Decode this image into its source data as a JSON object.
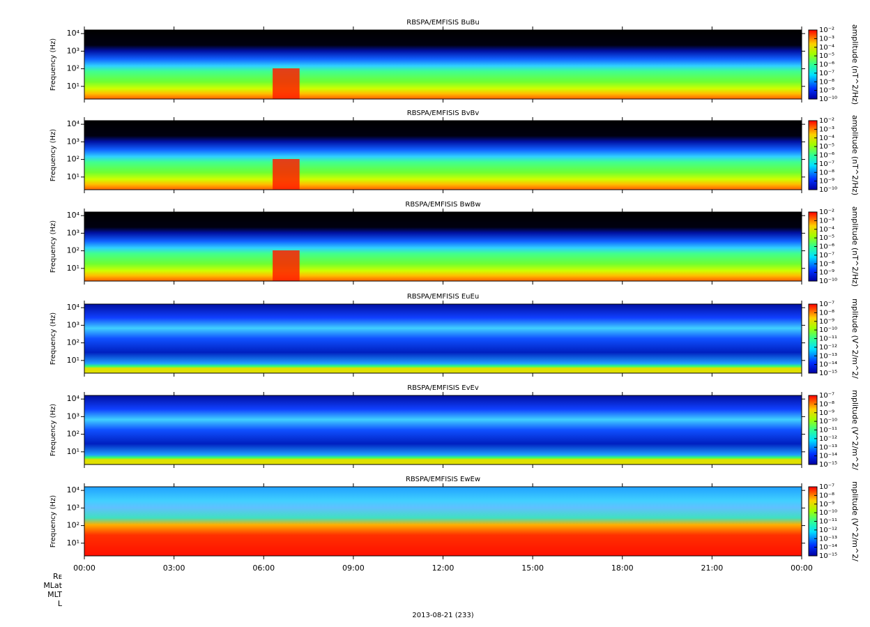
{
  "chart_data": [
    {
      "type": "spectrogram",
      "title": "RBSPA/EMFISIS  BuBu",
      "ylabel": "Frequency (Hz)",
      "log_y": true,
      "ylim": [
        1.9,
        16000
      ],
      "yticks": [
        {
          "value": 10,
          "label": "10¹"
        },
        {
          "value": 100,
          "label": "10²"
        },
        {
          "value": 1000,
          "label": "10³"
        },
        {
          "value": 10000,
          "label": "10⁴"
        }
      ],
      "zlabel": "amplitude (nT^2/Hz)",
      "zlim": [
        1e-10,
        0.01
      ],
      "zticks": [
        {
          "value": 1e-10,
          "label": "10⁻¹⁰"
        },
        {
          "value": 1e-09,
          "label": "10⁻⁹"
        },
        {
          "value": 1e-08,
          "label": "10⁻⁸"
        },
        {
          "value": 1e-07,
          "label": "10⁻⁷"
        },
        {
          "value": 1e-06,
          "label": "10⁻⁶"
        },
        {
          "value": 1e-05,
          "label": "10⁻⁵"
        },
        {
          "value": 0.0001,
          "label": "10⁻⁴"
        },
        {
          "value": 0.001,
          "label": "10⁻³"
        },
        {
          "value": 0.01,
          "label": "10⁻²"
        }
      ]
    },
    {
      "type": "spectrogram",
      "title": "RBSPA/EMFISIS  BvBv",
      "ylabel": "Frequency (Hz)",
      "log_y": true,
      "ylim": [
        1.9,
        16000
      ],
      "yticks": [
        {
          "value": 10,
          "label": "10¹"
        },
        {
          "value": 100,
          "label": "10²"
        },
        {
          "value": 1000,
          "label": "10³"
        },
        {
          "value": 10000,
          "label": "10⁴"
        }
      ],
      "zlabel": "amplitude (nT^2/Hz)",
      "zlim": [
        1e-10,
        0.01
      ],
      "zticks": [
        {
          "value": 1e-10,
          "label": "10⁻¹⁰"
        },
        {
          "value": 1e-09,
          "label": "10⁻⁹"
        },
        {
          "value": 1e-08,
          "label": "10⁻⁸"
        },
        {
          "value": 1e-07,
          "label": "10⁻⁷"
        },
        {
          "value": 1e-06,
          "label": "10⁻⁶"
        },
        {
          "value": 1e-05,
          "label": "10⁻⁵"
        },
        {
          "value": 0.0001,
          "label": "10⁻⁴"
        },
        {
          "value": 0.001,
          "label": "10⁻³"
        },
        {
          "value": 0.01,
          "label": "10⁻²"
        }
      ]
    },
    {
      "type": "spectrogram",
      "title": "RBSPA/EMFISIS  BwBw",
      "ylabel": "Frequency (Hz)",
      "log_y": true,
      "ylim": [
        1.9,
        16000
      ],
      "yticks": [
        {
          "value": 10,
          "label": "10¹"
        },
        {
          "value": 100,
          "label": "10²"
        },
        {
          "value": 1000,
          "label": "10³"
        },
        {
          "value": 10000,
          "label": "10⁴"
        }
      ],
      "zlabel": "amplitude (nT^2/Hz)",
      "zlim": [
        1e-10,
        0.01
      ],
      "zticks": [
        {
          "value": 1e-10,
          "label": "10⁻¹⁰"
        },
        {
          "value": 1e-09,
          "label": "10⁻⁹"
        },
        {
          "value": 1e-08,
          "label": "10⁻⁸"
        },
        {
          "value": 1e-07,
          "label": "10⁻⁷"
        },
        {
          "value": 1e-06,
          "label": "10⁻⁶"
        },
        {
          "value": 1e-05,
          "label": "10⁻⁵"
        },
        {
          "value": 0.0001,
          "label": "10⁻⁴"
        },
        {
          "value": 0.001,
          "label": "10⁻³"
        },
        {
          "value": 0.01,
          "label": "10⁻²"
        }
      ]
    },
    {
      "type": "spectrogram",
      "title": "RBSPA/EMFISIS  EuEu",
      "ylabel": "Frequency (Hz)",
      "log_y": true,
      "ylim": [
        1.9,
        16000
      ],
      "yticks": [
        {
          "value": 10,
          "label": "10¹"
        },
        {
          "value": 100,
          "label": "10²"
        },
        {
          "value": 1000,
          "label": "10³"
        },
        {
          "value": 10000,
          "label": "10⁴"
        }
      ],
      "zlabel": "mplitude (V^2/m^2/",
      "zlim": [
        1e-15,
        1e-07
      ],
      "zticks": [
        {
          "value": 1e-15,
          "label": "10⁻¹⁵"
        },
        {
          "value": 1e-14,
          "label": "10⁻¹⁴"
        },
        {
          "value": 1e-13,
          "label": "10⁻¹³"
        },
        {
          "value": 1e-12,
          "label": "10⁻¹²"
        },
        {
          "value": 1e-11,
          "label": "10⁻¹¹"
        },
        {
          "value": 1e-10,
          "label": "10⁻¹⁰"
        },
        {
          "value": 1e-09,
          "label": "10⁻⁹"
        },
        {
          "value": 1e-08,
          "label": "10⁻⁸"
        },
        {
          "value": 1e-07,
          "label": "10⁻⁷"
        }
      ]
    },
    {
      "type": "spectrogram",
      "title": "RBSPA/EMFISIS  EvEv",
      "ylabel": "Frequency (Hz)",
      "log_y": true,
      "ylim": [
        1.9,
        16000
      ],
      "yticks": [
        {
          "value": 10,
          "label": "10¹"
        },
        {
          "value": 100,
          "label": "10²"
        },
        {
          "value": 1000,
          "label": "10³"
        },
        {
          "value": 10000,
          "label": "10⁴"
        }
      ],
      "zlabel": "mplitude (V^2/m^2/",
      "zlim": [
        1e-15,
        1e-07
      ],
      "zticks": [
        {
          "value": 1e-15,
          "label": "10⁻¹⁵"
        },
        {
          "value": 1e-14,
          "label": "10⁻¹⁴"
        },
        {
          "value": 1e-13,
          "label": "10⁻¹³"
        },
        {
          "value": 1e-12,
          "label": "10⁻¹²"
        },
        {
          "value": 1e-11,
          "label": "10⁻¹¹"
        },
        {
          "value": 1e-10,
          "label": "10⁻¹⁰"
        },
        {
          "value": 1e-09,
          "label": "10⁻⁹"
        },
        {
          "value": 1e-08,
          "label": "10⁻⁸"
        },
        {
          "value": 1e-07,
          "label": "10⁻⁷"
        }
      ]
    },
    {
      "type": "spectrogram",
      "title": "RBSPA/EMFISIS  EwEw",
      "ylabel": "Frequency (Hz)",
      "log_y": true,
      "ylim": [
        1.9,
        16000
      ],
      "yticks": [
        {
          "value": 10,
          "label": "10¹"
        },
        {
          "value": 100,
          "label": "10²"
        },
        {
          "value": 1000,
          "label": "10³"
        },
        {
          "value": 10000,
          "label": "10⁴"
        }
      ],
      "zlabel": "mplitude (V^2/m^2/",
      "zlim": [
        1e-15,
        1e-07
      ],
      "zticks": [
        {
          "value": 1e-15,
          "label": "10⁻¹⁵"
        },
        {
          "value": 1e-14,
          "label": "10⁻¹⁴"
        },
        {
          "value": 1e-13,
          "label": "10⁻¹³"
        },
        {
          "value": 1e-12,
          "label": "10⁻¹²"
        },
        {
          "value": 1e-11,
          "label": "10⁻¹¹"
        },
        {
          "value": 1e-10,
          "label": "10⁻¹⁰"
        },
        {
          "value": 1e-09,
          "label": "10⁻⁹"
        },
        {
          "value": 1e-08,
          "label": "10⁻⁸"
        },
        {
          "value": 1e-07,
          "label": "10⁻⁷"
        }
      ],
      "xlim": [
        0,
        24
      ],
      "xticks": [
        {
          "value": 0,
          "label": "00:00"
        },
        {
          "value": 3,
          "label": "03:00"
        },
        {
          "value": 6,
          "label": "06:00"
        },
        {
          "value": 9,
          "label": "09:00"
        },
        {
          "value": 12,
          "label": "12:00"
        },
        {
          "value": 15,
          "label": "15:00"
        },
        {
          "value": 18,
          "label": "18:00"
        },
        {
          "value": 21,
          "label": "21:00"
        },
        {
          "value": 24,
          "label": "00:00"
        }
      ],
      "ephemeris_labels": [
        "Rᴇ",
        "MLat",
        "MLT",
        "L"
      ],
      "xlabel": "2013-08-21 (233)"
    }
  ]
}
